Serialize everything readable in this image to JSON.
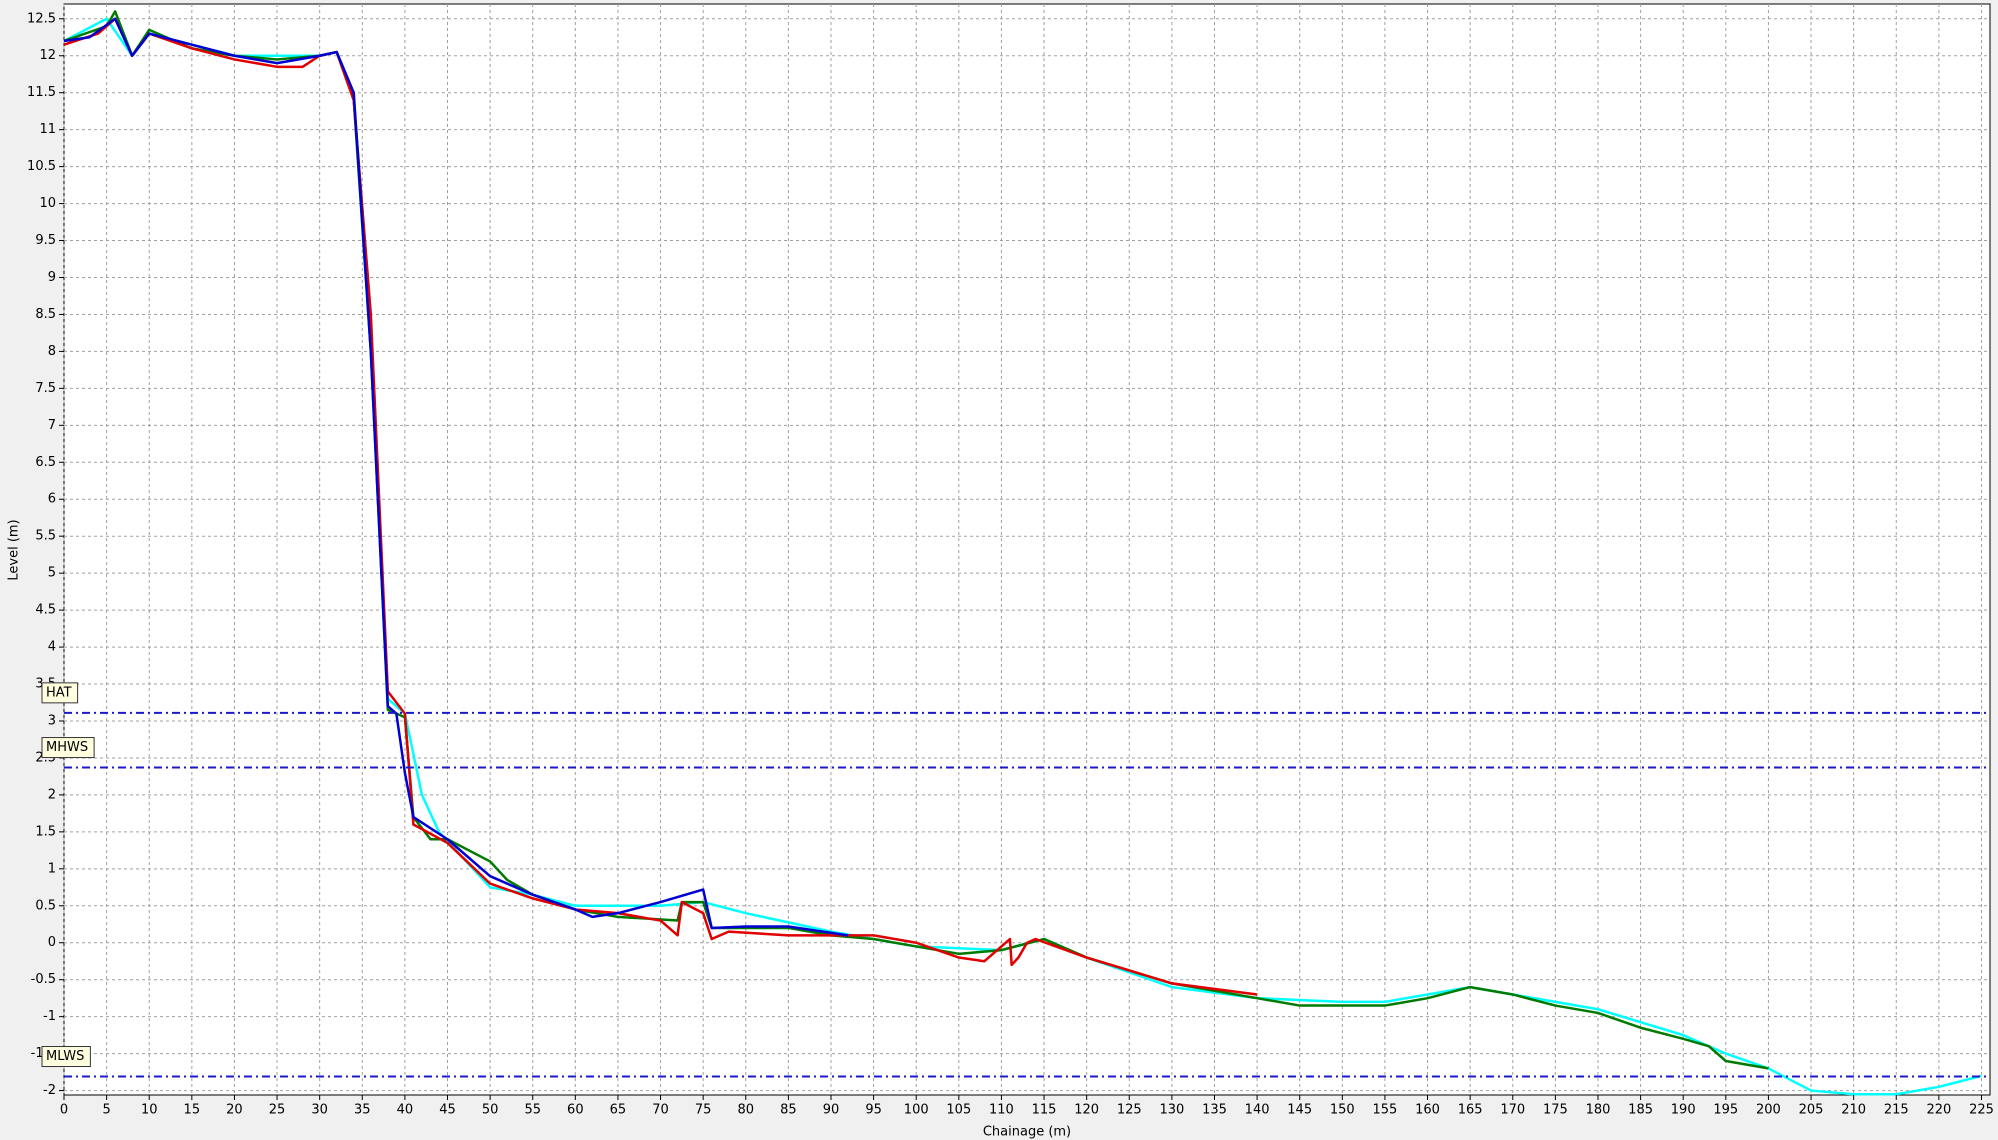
{
  "chart_data": {
    "type": "line",
    "x_label": "Chainage (m)",
    "y_label": "Level (m)",
    "xlim": [
      0,
      226
    ],
    "ylim": [
      -2.06,
      12.7
    ],
    "xticks": [
      0,
      5,
      10,
      15,
      20,
      25,
      30,
      35,
      40,
      45,
      50,
      55,
      60,
      65,
      70,
      75,
      80,
      85,
      90,
      95,
      100,
      105,
      110,
      115,
      120,
      125,
      130,
      135,
      140,
      145,
      150,
      155,
      160,
      165,
      170,
      175,
      180,
      185,
      190,
      195,
      200,
      205,
      210,
      215,
      220,
      225
    ],
    "yticks": [
      -2,
      -1.5,
      -1,
      -0.5,
      0,
      0.5,
      1,
      1.5,
      2,
      2.5,
      3,
      3.5,
      4,
      4.5,
      5,
      5.5,
      6,
      6.5,
      7,
      7.5,
      8,
      8.5,
      9,
      9.5,
      10,
      10.5,
      11,
      11.5,
      12,
      12.5
    ],
    "grid": true,
    "reference_lines": [
      {
        "label": "HAT",
        "value": 3.11,
        "color": "#1a1acc"
      },
      {
        "label": "MHWS",
        "value": 2.37,
        "color": "#1a1acc"
      },
      {
        "label": "MLWS",
        "value": -1.81,
        "color": "#1a1acc"
      }
    ],
    "series": [
      {
        "color": "#00ffff",
        "x": [
          0,
          5,
          8,
          10,
          20,
          30,
          32,
          34,
          36,
          38,
          40,
          42,
          44,
          50,
          55,
          60,
          70,
          75,
          80,
          90,
          100,
          110,
          115,
          120,
          130,
          140,
          150,
          155,
          160,
          165,
          170,
          180,
          190,
          195,
          200,
          205,
          210,
          215,
          220,
          225
        ],
        "values": [
          12.2,
          12.5,
          12.0,
          12.3,
          12.0,
          12.0,
          12.05,
          11.4,
          8.5,
          3.3,
          3.1,
          2.0,
          1.5,
          0.75,
          0.65,
          0.5,
          0.5,
          0.55,
          0.4,
          0.15,
          -0.05,
          -0.1,
          0.05,
          -0.2,
          -0.6,
          -0.75,
          -0.8,
          -0.8,
          -0.7,
          -0.6,
          -0.7,
          -0.9,
          -1.25,
          -1.5,
          -1.7,
          -2.0,
          -2.05,
          -2.05,
          -1.95,
          -1.8
        ]
      },
      {
        "color": "#007a00",
        "x": [
          0,
          5,
          6,
          8,
          10,
          15,
          20,
          25,
          30,
          32,
          34,
          36,
          38,
          40,
          41,
          43,
          45,
          50,
          52,
          55,
          60,
          65,
          72,
          72.5,
          75,
          76,
          85,
          90,
          95,
          100,
          105,
          110,
          115,
          120,
          130,
          140,
          145,
          150,
          155,
          160,
          165,
          170,
          175,
          180,
          185,
          190,
          193,
          195,
          200
        ],
        "values": [
          12.2,
          12.4,
          12.6,
          12.0,
          12.35,
          12.1,
          12.0,
          11.95,
          12.0,
          12.05,
          11.4,
          8.0,
          3.15,
          3.05,
          1.7,
          1.4,
          1.4,
          1.1,
          0.85,
          0.65,
          0.45,
          0.35,
          0.3,
          0.55,
          0.55,
          0.2,
          0.2,
          0.1,
          0.05,
          -0.05,
          -0.15,
          -0.1,
          0.05,
          -0.2,
          -0.55,
          -0.75,
          -0.85,
          -0.85,
          -0.85,
          -0.75,
          -0.6,
          -0.7,
          -0.85,
          -0.95,
          -1.15,
          -1.3,
          -1.4,
          -1.6,
          -1.7
        ]
      },
      {
        "color": "#e00000",
        "x": [
          0,
          4,
          6,
          8,
          10,
          15,
          20,
          25,
          28,
          30,
          32,
          34,
          36,
          38,
          40,
          41,
          45,
          50,
          55,
          60,
          65,
          70,
          72,
          72.5,
          75,
          76,
          78,
          85,
          95,
          100,
          105,
          108,
          110,
          111,
          111.2,
          112,
          113,
          114,
          120,
          130,
          140
        ],
        "values": [
          12.15,
          12.3,
          12.5,
          12.0,
          12.3,
          12.1,
          11.95,
          11.85,
          11.85,
          12.0,
          12.05,
          11.4,
          8.5,
          3.4,
          3.1,
          1.6,
          1.35,
          0.8,
          0.6,
          0.45,
          0.4,
          0.3,
          0.1,
          0.55,
          0.4,
          0.05,
          0.15,
          0.1,
          0.1,
          0.0,
          -0.2,
          -0.25,
          -0.05,
          0.05,
          -0.3,
          -0.2,
          0.0,
          0.05,
          -0.2,
          -0.55,
          -0.7
        ]
      },
      {
        "color": "#0000d0",
        "x": [
          0,
          3,
          6,
          8,
          10,
          15,
          20,
          25,
          30,
          32,
          34,
          36,
          38,
          39,
          40,
          41,
          45,
          50,
          55,
          60,
          62,
          65,
          70,
          75,
          76,
          80,
          85,
          92
        ],
        "values": [
          12.2,
          12.25,
          12.5,
          12.0,
          12.3,
          12.15,
          12.0,
          11.9,
          12.0,
          12.05,
          11.5,
          8.0,
          3.2,
          3.1,
          2.3,
          1.7,
          1.4,
          0.9,
          0.65,
          0.45,
          0.35,
          0.4,
          0.55,
          0.72,
          0.2,
          0.22,
          0.22,
          0.1
        ]
      }
    ]
  }
}
